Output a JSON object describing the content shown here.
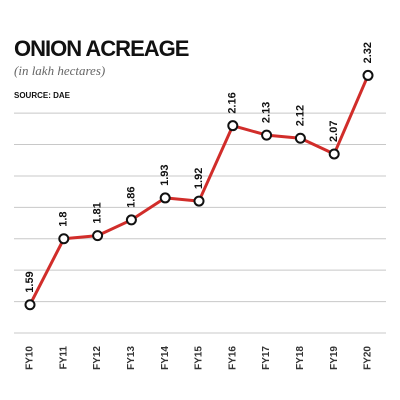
{
  "chart_data": {
    "type": "line",
    "title": "ONION ACREAGE",
    "subtitle": "(in lakh hectares)",
    "source": "SOURCE: DAE",
    "categories": [
      "FY10",
      "FY11",
      "FY12",
      "FY13",
      "FY14",
      "FY15",
      "FY16",
      "FY17",
      "FY18",
      "FY19",
      "FY20"
    ],
    "values": [
      1.59,
      1.8,
      1.81,
      1.86,
      1.93,
      1.92,
      2.16,
      2.13,
      2.12,
      2.07,
      2.32
    ],
    "color": "#d12d2a",
    "ylim": [
      1.5,
      2.35
    ],
    "yticks": [
      1.5,
      1.6,
      1.7,
      1.8,
      1.9,
      2.0,
      2.1,
      2.2
    ],
    "grid": true
  }
}
